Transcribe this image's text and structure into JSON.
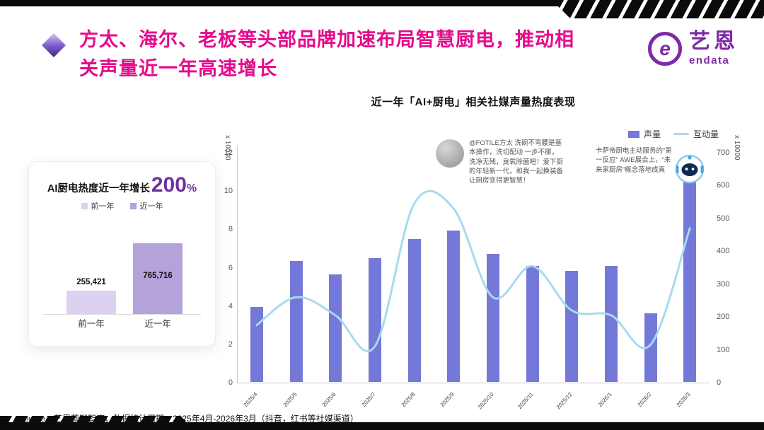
{
  "slide": {
    "title_line1": "方太、海尔、老板等头部品牌加速布局智慧厨电，推动相",
    "title_line2": "关声量近一年高速增长",
    "accent_color": "#E60A8C",
    "source": "source：艺恩营销智库，数据统计周期：2025年4月-2026年3月（抖音，红书等社媒渠道）"
  },
  "logo": {
    "letter": "e",
    "brand": "艺恩",
    "sub": "endata",
    "color": "#7D2AA6"
  },
  "growth_card": {
    "title": "AI厨电热度近一年增长",
    "number": "200",
    "percent": "%",
    "accent": "#7030A0",
    "legend": [
      {
        "label": "前一年",
        "color": "#DCD2EF"
      },
      {
        "label": "近一年",
        "color": "#B4A2DB"
      }
    ]
  },
  "chart_data": [
    {
      "id": "social-volume-trend",
      "type": "bar+line",
      "title": "近一年「AI+厨电」相关社媒声量热度表现",
      "legend": [
        {
          "label": "声量",
          "type": "bar",
          "color": "#7478D8"
        },
        {
          "label": "互动量",
          "type": "line",
          "color": "#A8DAEE"
        }
      ],
      "left_axis": {
        "unit": "x 10000",
        "max": 12,
        "ticks": [
          0,
          2,
          4,
          6,
          8,
          10,
          12
        ]
      },
      "right_axis": {
        "unit": "x 10000",
        "max": 700,
        "ticks": [
          0,
          100,
          200,
          300,
          400,
          500,
          600,
          700
        ]
      },
      "categories": [
        "2025/4",
        "2025/5",
        "2025/6",
        "2025/7",
        "2025/8",
        "2025/9",
        "2025/10",
        "2025/11",
        "2025/12",
        "2026/1",
        "2026/2",
        "2026/3"
      ],
      "series": [
        {
          "name": "声量",
          "type": "bar",
          "axis": "left",
          "values": [
            3.9,
            6.3,
            5.6,
            6.45,
            7.45,
            7.9,
            6.7,
            6.05,
            5.8,
            6.05,
            3.6,
            10.8
          ]
        },
        {
          "name": "互动量",
          "type": "line",
          "axis": "right",
          "values": [
            175,
            260,
            205,
            110,
            545,
            530,
            260,
            355,
            220,
            205,
            115,
            470
          ]
        }
      ],
      "annotations": [
        {
          "id": "fotile",
          "text": "@FOTILE方太 洗碗不弯腰是基本操作，洗切配动 一步不挪，洗净无残，臭氧除菌吧！爱下厨的年轻新一代，和我一起换装备 让厨房变得更智慧！"
        },
        {
          "id": "casarte",
          "text": "卡萨帝厨电主动服务的“第一反应” AWE展会上，“未来家厨房”概念落地成真"
        }
      ]
    },
    {
      "id": "yearly-growth",
      "type": "bar",
      "title": "AI厨电热度近一年增长200%",
      "categories": [
        "前一年",
        "近一年"
      ],
      "values": [
        255421,
        765716
      ],
      "value_labels": [
        "255,421",
        "765,716"
      ]
    }
  ]
}
